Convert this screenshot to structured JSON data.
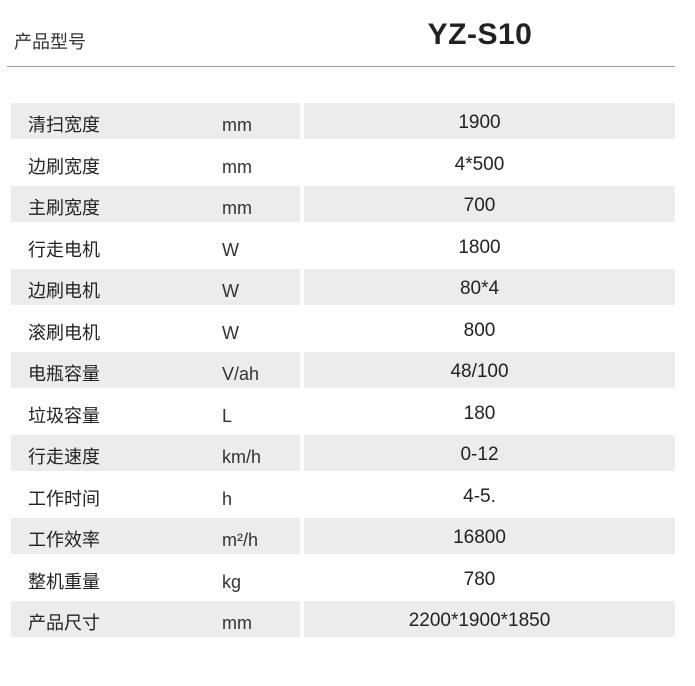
{
  "header": {
    "label": "产品型号",
    "model": "YZ-S10"
  },
  "specs": [
    {
      "name": "清扫宽度",
      "unit": "mm",
      "value": "1900"
    },
    {
      "name": "边刷宽度",
      "unit": "mm",
      "value": "4*500"
    },
    {
      "name": "主刷宽度",
      "unit": "mm",
      "value": "700"
    },
    {
      "name": "行走电机",
      "unit": "W",
      "value": "1800"
    },
    {
      "name": "边刷电机",
      "unit": "W",
      "value": "80*4"
    },
    {
      "name": "滚刷电机",
      "unit": "W",
      "value": "800"
    },
    {
      "name": "电瓶容量",
      "unit": "V/ah",
      "value": "48/100"
    },
    {
      "name": "垃圾容量",
      "unit": "L",
      "value": "180"
    },
    {
      "name": "行走速度",
      "unit": "km/h",
      "value": "0-12"
    },
    {
      "name": "工作时间",
      "unit": "h",
      "value": "4-5."
    },
    {
      "name": "工作效率",
      "unit": "m²/h",
      "value": "16800"
    },
    {
      "name": "整机重量",
      "unit": "kg",
      "value": "780"
    },
    {
      "name": "产品尺寸",
      "unit": "mm",
      "value": "2200*1900*1850"
    }
  ],
  "colors": {
    "row_shade": "#ececec",
    "divider": "#999999"
  }
}
